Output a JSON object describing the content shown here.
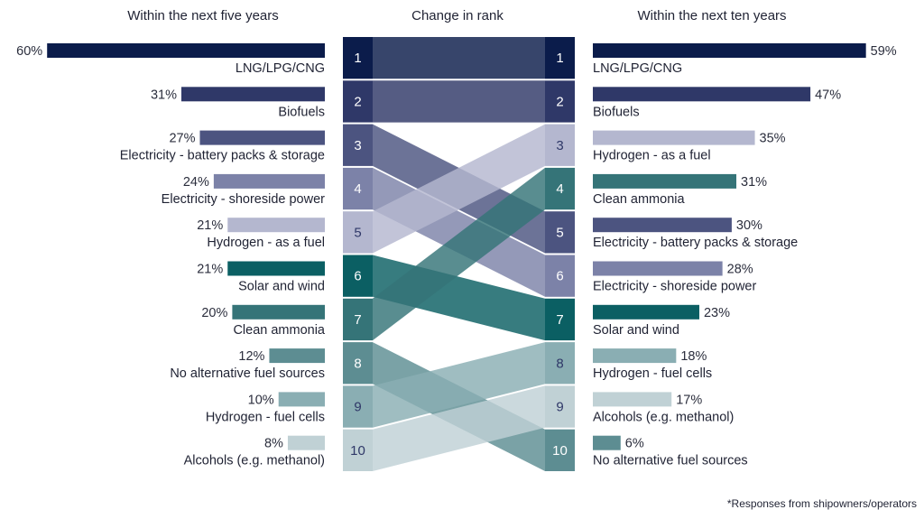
{
  "chart_data": {
    "type": "bar",
    "headers": {
      "left": "Within the next five years",
      "middle": "Change in rank",
      "right": "Within the next ten years"
    },
    "five_years": [
      {
        "label": "LNG/LPG/CNG",
        "value": 60,
        "value_label": "60%",
        "rank": "1"
      },
      {
        "label": "Biofuels",
        "value": 31,
        "value_label": "31%",
        "rank": "2"
      },
      {
        "label": "Electricity - battery packs & storage",
        "value": 27,
        "value_label": "27%",
        "rank": "3"
      },
      {
        "label": "Electricity - shoreside power",
        "value": 24,
        "value_label": "24%",
        "rank": "4"
      },
      {
        "label": "Hydrogen - as a fuel",
        "value": 21,
        "value_label": "21%",
        "rank": "5"
      },
      {
        "label": "Solar and wind",
        "value": 21,
        "value_label": "21%",
        "rank": "6"
      },
      {
        "label": "Clean ammonia",
        "value": 20,
        "value_label": "20%",
        "rank": "7"
      },
      {
        "label": "No alternative fuel sources",
        "value": 12,
        "value_label": "12%",
        "rank": "8"
      },
      {
        "label": "Hydrogen - fuel cells",
        "value": 10,
        "value_label": "10%",
        "rank": "9"
      },
      {
        "label": "Alcohols (e.g. methanol)",
        "value": 8,
        "value_label": "8%",
        "rank": "10"
      }
    ],
    "ten_years": [
      {
        "label": "LNG/LPG/CNG",
        "value": 59,
        "value_label": "59%",
        "rank": "1"
      },
      {
        "label": "Biofuels",
        "value": 47,
        "value_label": "47%",
        "rank": "2"
      },
      {
        "label": "Hydrogen - as a fuel",
        "value": 35,
        "value_label": "35%",
        "rank": "3"
      },
      {
        "label": "Clean ammonia",
        "value": 31,
        "value_label": "31%",
        "rank": "4"
      },
      {
        "label": "Electricity - battery packs & storage",
        "value": 30,
        "value_label": "30%",
        "rank": "5"
      },
      {
        "label": "Electricity - shoreside power",
        "value": 28,
        "value_label": "28%",
        "rank": "6"
      },
      {
        "label": "Solar and wind",
        "value": 23,
        "value_label": "23%",
        "rank": "7"
      },
      {
        "label": "Hydrogen - fuel cells",
        "value": 18,
        "value_label": "18%",
        "rank": "8"
      },
      {
        "label": "Alcohols (e.g. methanol)",
        "value": 17,
        "value_label": "17%",
        "rank": "9"
      },
      {
        "label": "No alternative fuel sources",
        "value": 6,
        "value_label": "6%",
        "rank": "10"
      }
    ],
    "colors": {
      "LNG/LPG/CNG": "#0b1c4b",
      "Biofuels": "#2f3868",
      "Electricity - battery packs & storage": "#4c5480",
      "Electricity - shoreside power": "#7c82a8",
      "Hydrogen - as a fuel": "#b4b7cf",
      "Solar and wind": "#0b5f63",
      "Clean ammonia": "#357478",
      "No alternative fuel sources": "#5d8d92",
      "Hydrogen - fuel cells": "#8aaeb3",
      "Alcohols (e.g. methanol)": "#c0d1d5"
    },
    "rank_text_dark": "#2f3868",
    "footnote": "*Responses from shipowners/operators"
  }
}
